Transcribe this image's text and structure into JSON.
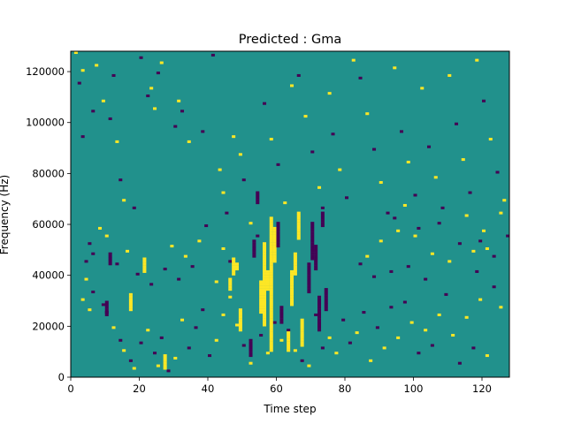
{
  "chart_data": {
    "type": "heatmap",
    "title": "Predicted : Gma",
    "xlabel": "Time step",
    "ylabel": "Frequency (Hz)",
    "xlim": [
      0,
      128
    ],
    "ylim": [
      0,
      128000
    ],
    "x_ticks": [
      0,
      20,
      40,
      60,
      80,
      100,
      120
    ],
    "y_ticks": [
      0,
      20000,
      40000,
      60000,
      80000,
      100000,
      120000
    ],
    "x_tick_labels": [
      "0",
      "20",
      "40",
      "60",
      "80",
      "100",
      "120"
    ],
    "y_tick_labels": [
      "0",
      "20000",
      "40000",
      "60000",
      "80000",
      "100000",
      "120000"
    ],
    "grid_rows": 128,
    "grid_cols": 128,
    "colormap": "viridis",
    "values_legend": {
      "low": 0,
      "mid": 1,
      "high": 2
    },
    "colors": {
      "low": "#440154",
      "mid": "#21918c",
      "high": "#fde725"
    },
    "background_value": 1,
    "sparse_cells_note": "[time_step, frequency_bin, value]",
    "cells": [
      [
        1,
        127,
        2
      ],
      [
        2,
        115,
        0
      ],
      [
        3,
        120,
        2
      ],
      [
        4,
        38,
        2
      ],
      [
        5,
        52,
        0
      ],
      [
        3,
        94,
        0
      ],
      [
        6,
        104,
        0
      ],
      [
        7,
        122,
        2
      ],
      [
        9,
        108,
        2
      ],
      [
        12,
        118,
        0
      ],
      [
        11,
        101,
        0
      ],
      [
        13,
        92,
        2
      ],
      [
        14,
        77,
        0
      ],
      [
        15,
        69,
        2
      ],
      [
        18,
        66,
        0
      ],
      [
        20,
        125,
        0
      ],
      [
        22,
        110,
        0
      ],
      [
        23,
        113,
        2
      ],
      [
        25,
        119,
        0
      ],
      [
        26,
        123,
        2
      ],
      [
        24,
        105,
        2
      ],
      [
        30,
        98,
        0
      ],
      [
        31,
        108,
        2
      ],
      [
        32,
        104,
        0
      ],
      [
        34,
        92,
        2
      ],
      [
        38,
        96,
        0
      ],
      [
        41,
        126,
        0
      ],
      [
        43,
        81,
        2
      ],
      [
        44,
        72,
        2
      ],
      [
        45,
        64,
        0
      ],
      [
        47,
        94,
        2
      ],
      [
        49,
        87,
        2
      ],
      [
        50,
        77,
        0
      ],
      [
        52,
        60,
        2
      ],
      [
        54,
        55,
        0
      ],
      [
        56,
        107,
        0
      ],
      [
        58,
        93,
        2
      ],
      [
        60,
        83,
        0
      ],
      [
        62,
        68,
        2
      ],
      [
        64,
        114,
        2
      ],
      [
        66,
        118,
        0
      ],
      [
        68,
        102,
        2
      ],
      [
        70,
        88,
        0
      ],
      [
        72,
        74,
        2
      ],
      [
        73,
        66,
        0
      ],
      [
        75,
        111,
        2
      ],
      [
        76,
        95,
        0
      ],
      [
        78,
        81,
        2
      ],
      [
        80,
        70,
        0
      ],
      [
        82,
        124,
        2
      ],
      [
        84,
        117,
        0
      ],
      [
        86,
        103,
        2
      ],
      [
        88,
        89,
        0
      ],
      [
        90,
        76,
        2
      ],
      [
        92,
        64,
        0
      ],
      [
        94,
        121,
        2
      ],
      [
        96,
        96,
        0
      ],
      [
        98,
        84,
        2
      ],
      [
        100,
        71,
        0
      ],
      [
        102,
        113,
        2
      ],
      [
        104,
        90,
        0
      ],
      [
        106,
        78,
        2
      ],
      [
        108,
        66,
        0
      ],
      [
        110,
        118,
        2
      ],
      [
        112,
        99,
        0
      ],
      [
        114,
        85,
        2
      ],
      [
        116,
        72,
        0
      ],
      [
        118,
        124,
        2
      ],
      [
        120,
        108,
        0
      ],
      [
        122,
        93,
        2
      ],
      [
        124,
        80,
        0
      ],
      [
        126,
        69,
        2
      ],
      [
        127,
        55,
        0
      ],
      [
        121,
        50,
        2
      ],
      [
        119,
        53,
        0
      ],
      [
        117,
        49,
        2
      ],
      [
        3,
        30,
        2
      ],
      [
        5,
        26,
        2
      ],
      [
        6,
        33,
        0
      ],
      [
        9,
        28,
        0
      ],
      [
        10,
        25,
        0
      ],
      [
        12,
        19,
        2
      ],
      [
        14,
        14,
        0
      ],
      [
        15,
        10,
        2
      ],
      [
        17,
        6,
        0
      ],
      [
        18,
        3,
        2
      ],
      [
        20,
        13,
        0
      ],
      [
        22,
        18,
        2
      ],
      [
        24,
        9,
        0
      ],
      [
        25,
        4,
        2
      ],
      [
        26,
        15,
        0
      ],
      [
        28,
        2,
        0
      ],
      [
        30,
        7,
        2
      ],
      [
        32,
        22,
        2
      ],
      [
        34,
        11,
        0
      ],
      [
        36,
        19,
        0
      ],
      [
        38,
        26,
        0
      ],
      [
        40,
        8,
        0
      ],
      [
        42,
        14,
        2
      ],
      [
        44,
        24,
        2
      ],
      [
        46,
        31,
        2
      ],
      [
        48,
        20,
        2
      ],
      [
        50,
        12,
        0
      ],
      [
        52,
        5,
        2
      ],
      [
        55,
        16,
        0
      ],
      [
        57,
        9,
        2
      ],
      [
        59,
        21,
        0
      ],
      [
        61,
        14,
        2
      ],
      [
        63,
        18,
        0
      ],
      [
        65,
        10,
        2
      ],
      [
        67,
        6,
        0
      ],
      [
        69,
        4,
        2
      ],
      [
        71,
        24,
        0
      ],
      [
        73,
        11,
        0
      ],
      [
        75,
        15,
        2
      ],
      [
        77,
        9,
        2
      ],
      [
        79,
        22,
        0
      ],
      [
        81,
        13,
        0
      ],
      [
        83,
        17,
        2
      ],
      [
        85,
        25,
        0
      ],
      [
        87,
        6,
        2
      ],
      [
        89,
        19,
        0
      ],
      [
        91,
        11,
        2
      ],
      [
        93,
        27,
        0
      ],
      [
        95,
        15,
        2
      ],
      [
        97,
        29,
        0
      ],
      [
        99,
        21,
        2
      ],
      [
        101,
        9,
        0
      ],
      [
        103,
        18,
        2
      ],
      [
        105,
        12,
        0
      ],
      [
        107,
        24,
        2
      ],
      [
        109,
        32,
        0
      ],
      [
        111,
        16,
        2
      ],
      [
        113,
        5,
        0
      ],
      [
        115,
        23,
        2
      ],
      [
        117,
        11,
        0
      ],
      [
        119,
        30,
        2
      ],
      [
        121,
        8,
        2
      ],
      [
        123,
        35,
        0
      ],
      [
        125,
        27,
        2
      ],
      [
        4,
        45,
        0
      ],
      [
        6,
        48,
        0
      ],
      [
        8,
        58,
        2
      ],
      [
        10,
        55,
        2
      ],
      [
        13,
        44,
        0
      ],
      [
        16,
        49,
        2
      ],
      [
        19,
        40,
        0
      ],
      [
        21,
        46,
        2
      ],
      [
        23,
        36,
        0
      ],
      [
        27,
        42,
        0
      ],
      [
        29,
        51,
        2
      ],
      [
        31,
        38,
        0
      ],
      [
        33,
        47,
        2
      ],
      [
        35,
        43,
        0
      ],
      [
        37,
        53,
        2
      ],
      [
        39,
        59,
        0
      ],
      [
        42,
        37,
        2
      ],
      [
        44,
        50,
        2
      ],
      [
        46,
        45,
        0
      ],
      [
        84,
        44,
        0
      ],
      [
        86,
        47,
        2
      ],
      [
        88,
        39,
        0
      ],
      [
        90,
        53,
        2
      ],
      [
        93,
        41,
        0
      ],
      [
        95,
        57,
        2
      ],
      [
        98,
        43,
        0
      ],
      [
        100,
        55,
        2
      ],
      [
        103,
        38,
        0
      ],
      [
        105,
        48,
        2
      ],
      [
        107,
        60,
        0
      ],
      [
        110,
        45,
        2
      ],
      [
        113,
        52,
        0
      ],
      [
        115,
        63,
        2
      ],
      [
        118,
        41,
        0
      ],
      [
        120,
        57,
        2
      ],
      [
        123,
        47,
        0
      ],
      [
        125,
        64,
        2
      ],
      [
        94,
        62,
        0
      ],
      [
        97,
        67,
        2
      ],
      [
        101,
        58,
        0
      ]
    ],
    "cell_runs_note": "[time_step, start_bin, end_bin, value]",
    "cell_runs": [
      [
        55,
        25,
        37,
        2
      ],
      [
        56,
        20,
        52,
        2
      ],
      [
        57,
        34,
        41,
        2
      ],
      [
        58,
        10,
        62,
        2
      ],
      [
        59,
        45,
        58,
        2
      ],
      [
        46,
        34,
        38,
        2
      ],
      [
        47,
        40,
        46,
        2
      ],
      [
        48,
        42,
        44,
        2
      ],
      [
        49,
        18,
        26,
        2
      ],
      [
        63,
        10,
        17,
        2
      ],
      [
        64,
        28,
        41,
        2
      ],
      [
        65,
        40,
        48,
        2
      ],
      [
        66,
        54,
        64,
        2
      ],
      [
        67,
        12,
        22,
        2
      ],
      [
        69,
        33,
        44,
        0
      ],
      [
        70,
        46,
        60,
        0
      ],
      [
        71,
        42,
        51,
        0
      ],
      [
        72,
        18,
        31,
        0
      ],
      [
        73,
        59,
        64,
        0
      ],
      [
        74,
        26,
        34,
        0
      ],
      [
        53,
        47,
        53,
        0
      ],
      [
        52,
        8,
        14,
        0
      ],
      [
        60,
        51,
        60,
        0
      ],
      [
        61,
        21,
        27,
        0
      ],
      [
        54,
        68,
        72,
        0
      ],
      [
        10,
        24,
        29,
        0
      ],
      [
        11,
        44,
        48,
        0
      ],
      [
        17,
        26,
        32,
        2
      ],
      [
        21,
        41,
        45,
        2
      ],
      [
        27,
        3,
        8,
        2
      ]
    ]
  }
}
